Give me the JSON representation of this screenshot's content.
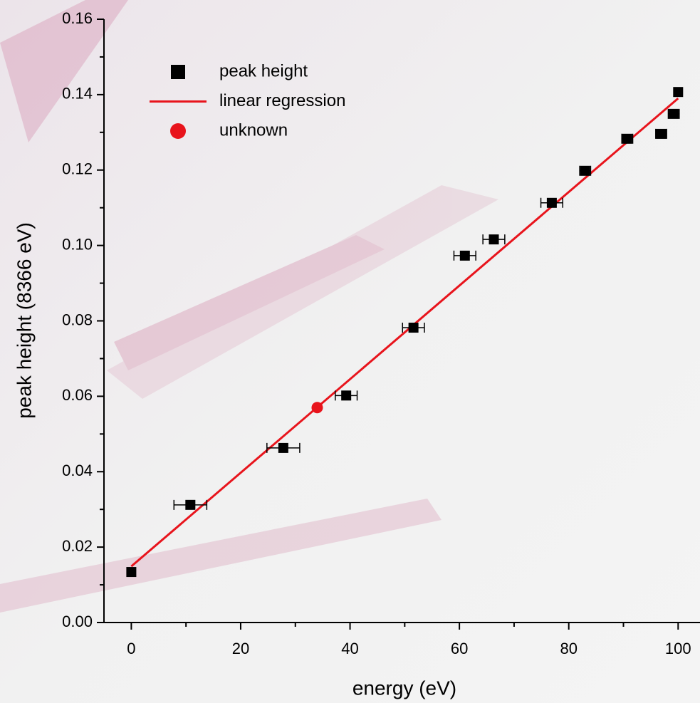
{
  "chart_data": {
    "type": "scatter",
    "x_label": "energy (eV)",
    "y_label": "peak height (8366 eV)",
    "xlim": [
      -5,
      104
    ],
    "ylim": [
      0,
      0.16
    ],
    "xticks": [
      0,
      20,
      40,
      60,
      80,
      100
    ],
    "yticks": [
      {
        "value": 0,
        "label": "0.00"
      },
      {
        "value": 0.02,
        "label": "0.02"
      },
      {
        "value": 0.04,
        "label": "0.04"
      },
      {
        "value": 0.06,
        "label": "0.06"
      },
      {
        "value": 0.08,
        "label": "0.08"
      },
      {
        "value": 0.1,
        "label": "0.10"
      },
      {
        "value": 0.12,
        "label": "0.12"
      },
      {
        "value": 0.14,
        "label": "0.14"
      },
      {
        "value": 0.16,
        "label": "0.16"
      }
    ],
    "xminorticks": [
      10,
      30,
      50,
      70,
      90
    ],
    "yminorticks": [
      0.01,
      0.03,
      0.05,
      0.07,
      0.09,
      0.11,
      0.13,
      0.15
    ],
    "legend": "upper left",
    "series": [
      {
        "name": "peak height",
        "marker": "square",
        "color": "#000000",
        "x": [
          0,
          10.8,
          27.8,
          39.3,
          51.6,
          61,
          66.3,
          76.9,
          83,
          90.7,
          96.9,
          99.2,
          100
        ],
        "values": [
          0.0134,
          0.0312,
          0.0463,
          0.0602,
          0.0782,
          0.0973,
          0.1016,
          0.1113,
          0.1198,
          0.1283,
          0.1296,
          0.1349,
          0.1407
        ],
        "xerr": [
          0,
          3,
          3,
          2,
          2,
          2,
          2,
          2,
          1,
          1,
          1,
          1,
          0
        ]
      },
      {
        "name": "linear regression",
        "marker": "line",
        "color": "#e8141c",
        "x": [
          0,
          100
        ],
        "values": [
          0.0149,
          0.139
        ]
      },
      {
        "name": "unknown",
        "marker": "circle",
        "color": "#e8141c",
        "x": [
          34
        ],
        "values": [
          0.057
        ]
      }
    ]
  }
}
